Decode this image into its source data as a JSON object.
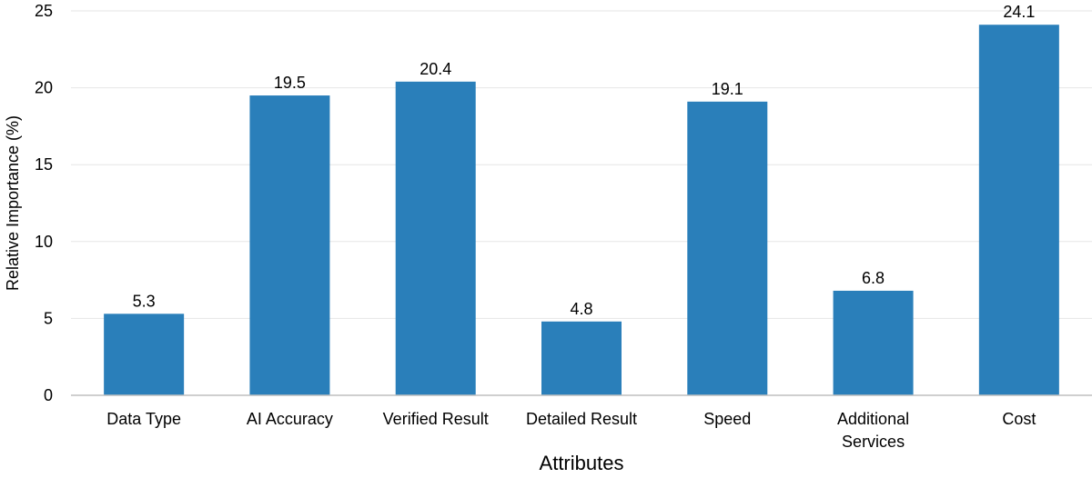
{
  "chart_data": {
    "type": "bar",
    "categories": [
      [
        "Data Type"
      ],
      [
        "AI Accuracy"
      ],
      [
        "Verified Result"
      ],
      [
        "Detailed Result"
      ],
      [
        "Speed"
      ],
      [
        "Additional",
        "Services"
      ],
      [
        "Cost"
      ]
    ],
    "values": [
      5.3,
      19.5,
      20.4,
      4.8,
      19.1,
      6.8,
      24.1
    ],
    "data_labels": [
      "5.3",
      "19.5",
      "20.4",
      "4.8",
      "19.1",
      "6.8",
      "24.1"
    ],
    "xlabel": "Attributes",
    "ylabel": "Relative Importance (%)",
    "ylim": [
      0,
      25
    ],
    "yticks": [
      0,
      5,
      10,
      15,
      20,
      25
    ],
    "grid": true,
    "legend": "none",
    "bar_color": "#2a7fba",
    "grid_color": "#e6e6e6",
    "axis_color": "#bfbfbf"
  }
}
